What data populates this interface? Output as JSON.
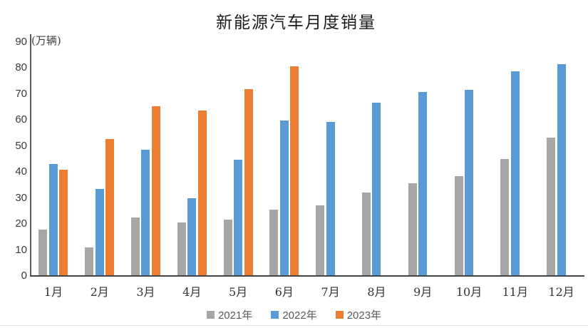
{
  "chart": {
    "title": "新能源汽车月度销量",
    "unit_label": "(万辆)"
  },
  "chart_data": {
    "type": "bar",
    "title": "新能源汽车月度销量",
    "ylabel": "(万辆)",
    "xlabel": "",
    "ylim": [
      0,
      90
    ],
    "yticks": [
      0,
      10,
      20,
      30,
      40,
      50,
      60,
      70,
      80,
      90
    ],
    "grid": false,
    "legend_position": "bottom",
    "categories": [
      "1月",
      "2月",
      "3月",
      "4月",
      "5月",
      "6月",
      "7月",
      "8月",
      "9月",
      "10月",
      "11月",
      "12月"
    ],
    "series": [
      {
        "name": "2021年",
        "color": "#A6A6A6",
        "values": [
          17.9,
          11.0,
          22.6,
          20.6,
          21.7,
          25.6,
          27.1,
          32.1,
          35.7,
          38.3,
          45.0,
          53.1
        ]
      },
      {
        "name": "2022年",
        "color": "#5B9BD5",
        "values": [
          43.1,
          33.4,
          48.4,
          29.9,
          44.7,
          59.6,
          59.3,
          66.6,
          70.8,
          71.4,
          78.6,
          81.4
        ]
      },
      {
        "name": "2023年",
        "color": "#ED7D31",
        "values": [
          40.8,
          52.5,
          65.3,
          63.6,
          71.7,
          80.6,
          null,
          null,
          null,
          null,
          null,
          null
        ]
      }
    ]
  },
  "colors": {
    "axis": "#444444",
    "tick_text": "#3a3a3a",
    "legend_text": "#595959",
    "background": "#ffffff"
  }
}
